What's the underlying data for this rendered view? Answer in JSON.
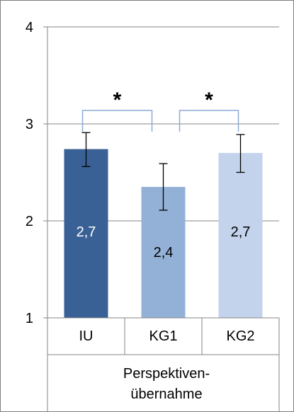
{
  "chart_data": {
    "type": "bar",
    "categories": [
      "IU",
      "KG1",
      "KG2"
    ],
    "group_label_lines": [
      "Perspektiven-",
      "übernahme"
    ],
    "values": [
      2.74,
      2.35,
      2.7
    ],
    "error_low": [
      2.56,
      2.11,
      2.5
    ],
    "error_high": [
      2.91,
      2.59,
      2.89
    ],
    "data_labels": [
      "2,7",
      "2,4",
      "2,7"
    ],
    "bar_colors": [
      "#3a6196",
      "#93b1d6",
      "#c3d3ec"
    ],
    "label_colors": [
      "#ffffff",
      "#000000",
      "#000000"
    ],
    "ylim": [
      1,
      4
    ],
    "yticks": [
      "1",
      "2",
      "3",
      "4"
    ],
    "grid": true,
    "significance": [
      {
        "from": 0,
        "to": 1,
        "marker": "*"
      },
      {
        "from": 1,
        "to": 2,
        "marker": "*"
      }
    ],
    "bracket_color": "#8eabd9"
  }
}
